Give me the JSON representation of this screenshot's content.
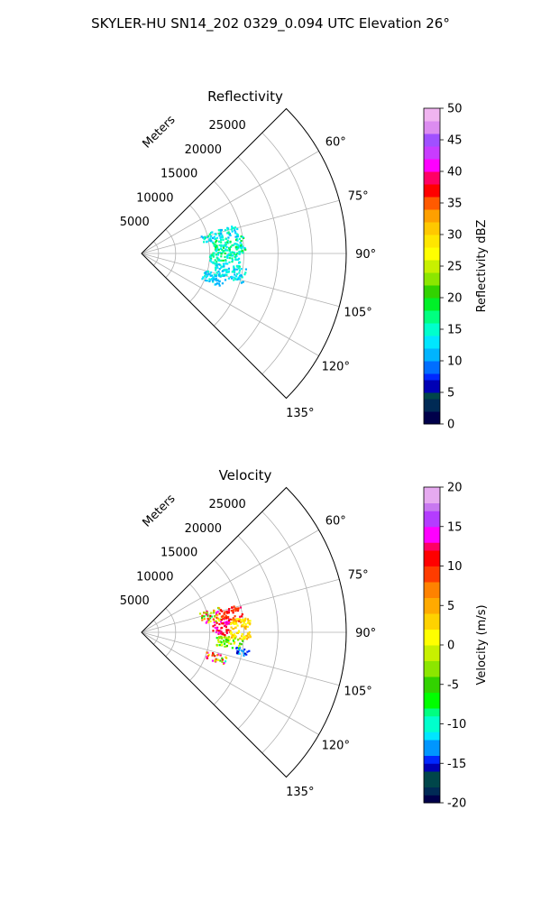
{
  "suptitle": "SKYLER-HU  SN14_202  0329_0.094 UTC Elevation 26°",
  "chart_data": [
    {
      "type": "polar-sector-scatter",
      "title": "Reflectivity",
      "range_label": "Meters",
      "range_ticks": [
        "5000",
        "10000",
        "15000",
        "20000",
        "25000"
      ],
      "range_max": 30000,
      "azimuth_range_deg": [
        45,
        135
      ],
      "azimuth_ticks": [
        "60°",
        "75°",
        "90°",
        "105°",
        "120°",
        "135°"
      ],
      "grid": true,
      "colorbar": {
        "label": "Reflectivity dBZ",
        "ticks": [
          "0",
          "5",
          "10",
          "15",
          "20",
          "25",
          "30",
          "35",
          "40",
          "45",
          "50"
        ],
        "range": [
          0,
          50
        ]
      },
      "echoes": [
        {
          "region": "main-north",
          "azimuth_deg": [
            73,
            80
          ],
          "range_m": [
            9000,
            14500
          ],
          "value": [
            10,
            17
          ]
        },
        {
          "region": "main-center",
          "azimuth_deg": [
            80,
            90
          ],
          "range_m": [
            10500,
            15500
          ],
          "value": [
            12,
            20
          ]
        },
        {
          "region": "main-south",
          "azimuth_deg": [
            90,
            98
          ],
          "range_m": [
            10000,
            14500
          ],
          "value": [
            12,
            19
          ]
        },
        {
          "region": "south-scatter",
          "azimuth_deg": [
            98,
            107
          ],
          "range_m": [
            11000,
            15500
          ],
          "value": [
            10,
            16
          ]
        },
        {
          "region": "far-south",
          "azimuth_deg": [
            105,
            113
          ],
          "range_m": [
            9500,
            13000
          ],
          "value": [
            10,
            15
          ]
        }
      ]
    },
    {
      "type": "polar-sector-scatter",
      "title": "Velocity",
      "range_label": "Meters",
      "range_ticks": [
        "5000",
        "10000",
        "15000",
        "20000",
        "25000"
      ],
      "range_max": 30000,
      "azimuth_range_deg": [
        45,
        135
      ],
      "azimuth_ticks": [
        "60°",
        "75°",
        "90°",
        "105°",
        "120°",
        "135°"
      ],
      "grid": true,
      "colorbar": {
        "label": "Velocity (m/s)",
        "ticks": [
          "-20",
          "-15",
          "-10",
          "-5",
          "0",
          "5",
          "10",
          "15",
          "20"
        ],
        "range": [
          -20,
          20
        ]
      },
      "echoes": [
        {
          "region": "north-west",
          "azimuth_deg": [
            72,
            82
          ],
          "range_m": [
            9000,
            12000
          ],
          "value": [
            -10,
            15
          ]
        },
        {
          "region": "north-east",
          "azimuth_deg": [
            74,
            84
          ],
          "range_m": [
            12000,
            15000
          ],
          "value": [
            8,
            12
          ]
        },
        {
          "region": "center-west",
          "azimuth_deg": [
            82,
            92
          ],
          "range_m": [
            10500,
            13000
          ],
          "value": [
            10,
            14
          ]
        },
        {
          "region": "center-east",
          "azimuth_deg": [
            82,
            95
          ],
          "range_m": [
            13000,
            16000
          ],
          "value": [
            0,
            5
          ]
        },
        {
          "region": "south",
          "azimuth_deg": [
            93,
            100
          ],
          "range_m": [
            11000,
            15000
          ],
          "value": [
            -8,
            3
          ]
        },
        {
          "region": "south-blue",
          "azimuth_deg": [
            99,
            103
          ],
          "range_m": [
            14000,
            16000
          ],
          "value": [
            -16,
            -12
          ]
        },
        {
          "region": "far-south",
          "azimuth_deg": [
            106,
            112
          ],
          "range_m": [
            10000,
            13000
          ],
          "value": [
            -10,
            15
          ]
        }
      ]
    }
  ]
}
